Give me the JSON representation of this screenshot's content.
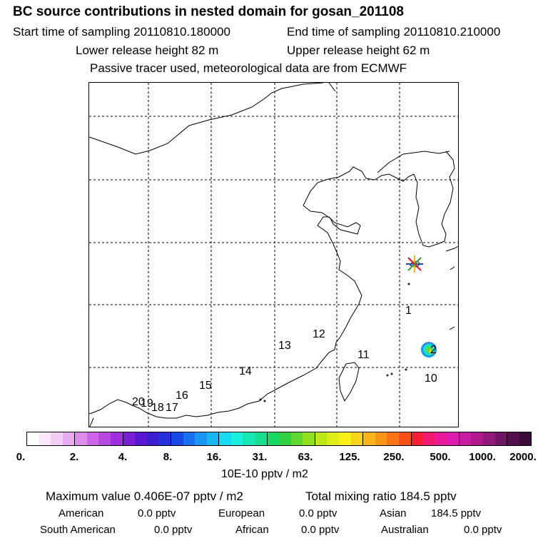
{
  "header": {
    "title": "BC  source contributions in nested domain for gosan_201108",
    "start_label": "Start time of sampling 20110810.180000",
    "end_label": "End time of sampling 20110810.210000",
    "lower_label": "Lower release height   82 m",
    "upper_label": "Upper release height   62 m",
    "tracer_label": "Passive tracer used, meteorological data are from ECMWF"
  },
  "map": {
    "trajectory_labels": [
      {
        "id": "1",
        "text": "1"
      },
      {
        "id": "2",
        "text": "2"
      },
      {
        "id": "10",
        "text": "10"
      },
      {
        "id": "11",
        "text": "11"
      },
      {
        "id": "12",
        "text": "12"
      },
      {
        "id": "13",
        "text": "13"
      },
      {
        "id": "14",
        "text": "14"
      },
      {
        "id": "15",
        "text": "15"
      },
      {
        "id": "16",
        "text": "16"
      },
      {
        "id": "17",
        "text": "17"
      },
      {
        "id": "18",
        "text": "18"
      },
      {
        "id": "19",
        "text": "19"
      },
      {
        "id": "20",
        "text": "20"
      }
    ],
    "receptor_marker": "star-icon"
  },
  "colorbar": {
    "ticks": [
      "0.",
      "2.",
      "4.",
      "8.",
      "16.",
      "31.",
      "63.",
      "125.",
      "250.",
      "500.",
      "1000.",
      "2000."
    ],
    "unit": "10E-10 pptv / m2",
    "colors": [
      "#ffffff",
      "#fbe6fb",
      "#f3cdf5",
      "#e9aaf1",
      "#dc8ce9",
      "#cc66e6",
      "#b64ae2",
      "#a12ede",
      "#7a1fd6",
      "#5a18d2",
      "#3c1ed2",
      "#2430dc",
      "#1848e6",
      "#1870f0",
      "#1896f4",
      "#18b8f4",
      "#18dcf2",
      "#18f0e0",
      "#18e8b8",
      "#18e090",
      "#18d864",
      "#30d040",
      "#60d830",
      "#90e020",
      "#bce818",
      "#e0ec18",
      "#f8ee18",
      "#f8d418",
      "#f8b418",
      "#f89418",
      "#f87418",
      "#f85018",
      "#f81e34",
      "#f01870",
      "#e81896",
      "#e01cb0",
      "#c81ca0",
      "#b0188c",
      "#901878",
      "#701464",
      "#54104e",
      "#3a0a38"
    ]
  },
  "summary": {
    "maximum": "Maximum value  0.406E-07 pptv / m2",
    "total": "Total mixing ratio      184.5 pptv",
    "american_label": "American",
    "american_value": "0.0 pptv",
    "european_label": "European",
    "european_value": "0.0 pptv",
    "asian_label": "Asian",
    "asian_value": "184.5 pptv",
    "south_american_label": "South American",
    "south_american_value": "0.0 pptv",
    "african_label": "African",
    "african_value": "0.0 pptv",
    "australian_label": "Australian",
    "australian_value": "0.0 pptv"
  }
}
